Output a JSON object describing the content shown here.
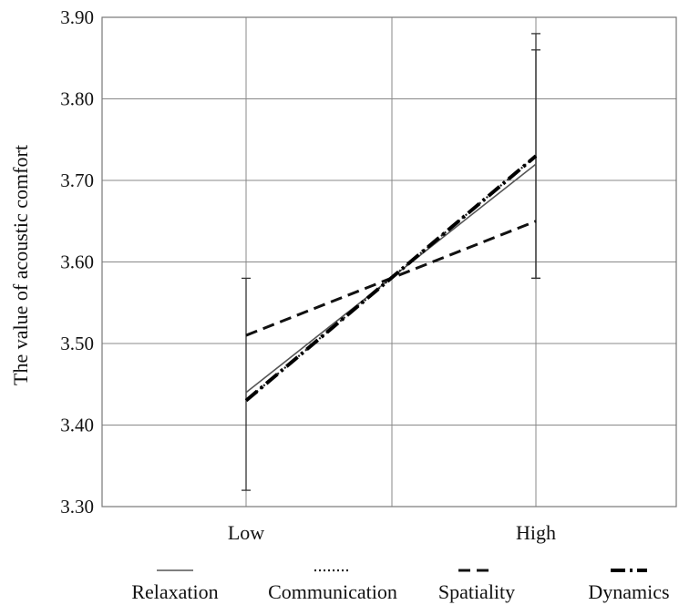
{
  "chart_data": {
    "type": "line",
    "title": "",
    "xlabel": "",
    "ylabel": "The value of acoustic comfort",
    "categories": [
      "Low",
      "High"
    ],
    "ylim": [
      3.3,
      3.9
    ],
    "yticks": [
      "3.30",
      "3.40",
      "3.50",
      "3.60",
      "3.70",
      "3.80",
      "3.90"
    ],
    "grid": true,
    "legend_position": "bottom",
    "series": [
      {
        "name": "Relaxation",
        "values": [
          3.44,
          3.72
        ],
        "style": "solid-thin",
        "color": "#555555"
      },
      {
        "name": "Communication",
        "values": [
          3.43,
          3.73
        ],
        "style": "dotted",
        "color": "#222222"
      },
      {
        "name": "Spatiality",
        "values": [
          3.51,
          3.65
        ],
        "style": "dashed",
        "color": "#111111"
      },
      {
        "name": "Dynamics",
        "values": [
          3.43,
          3.73
        ],
        "style": "dash-dot-thick",
        "color": "#000000"
      }
    ],
    "error_bars": [
      {
        "category": "Low",
        "low": 3.32,
        "high": 3.58
      },
      {
        "category": "High",
        "low": 3.58,
        "high": 3.88
      },
      {
        "category": "High",
        "low": 3.58,
        "high": 3.86
      }
    ]
  }
}
